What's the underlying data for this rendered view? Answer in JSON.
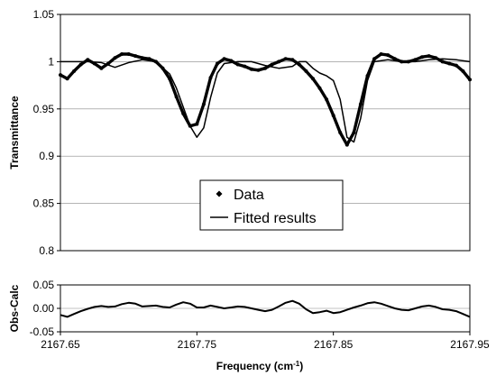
{
  "chart_data": [
    {
      "type": "line",
      "title": "",
      "xlabel": "",
      "ylabel": "Transmittance",
      "xlim": [
        2167.65,
        2167.95
      ],
      "ylim": [
        0.8,
        1.05
      ],
      "yticks": [
        "0.8",
        "0.85",
        "0.9",
        "0.95",
        "1",
        "1.05"
      ],
      "grid": true,
      "legend": {
        "placement": "lower-center",
        "entries": [
          {
            "label": "Data",
            "marker": "diamond"
          },
          {
            "label": "Fitted results",
            "marker": "line"
          }
        ]
      },
      "series": [
        {
          "name": "Data",
          "style": "dots",
          "x": [
            2167.65,
            2167.655,
            2167.66,
            2167.665,
            2167.67,
            2167.675,
            2167.68,
            2167.685,
            2167.69,
            2167.695,
            2167.7,
            2167.705,
            2167.71,
            2167.715,
            2167.72,
            2167.725,
            2167.73,
            2167.735,
            2167.74,
            2167.745,
            2167.75,
            2167.755,
            2167.76,
            2167.765,
            2167.77,
            2167.775,
            2167.78,
            2167.785,
            2167.79,
            2167.795,
            2167.8,
            2167.805,
            2167.81,
            2167.815,
            2167.82,
            2167.825,
            2167.83,
            2167.835,
            2167.84,
            2167.845,
            2167.85,
            2167.855,
            2167.86,
            2167.865,
            2167.87,
            2167.875,
            2167.88,
            2167.885,
            2167.89,
            2167.895,
            2167.9,
            2167.905,
            2167.91,
            2167.915,
            2167.92,
            2167.925,
            2167.93,
            2167.935,
            2167.94,
            2167.945,
            2167.95
          ],
          "y": [
            0.986,
            0.982,
            0.99,
            0.997,
            1.002,
            0.998,
            0.993,
            0.998,
            1.004,
            1.008,
            1.008,
            1.006,
            1.004,
            1.003,
            1.0,
            0.993,
            0.982,
            0.963,
            0.945,
            0.932,
            0.934,
            0.955,
            0.983,
            0.998,
            1.003,
            1.001,
            0.997,
            0.995,
            0.992,
            0.991,
            0.993,
            0.997,
            1.0,
            1.003,
            1.002,
            0.997,
            0.99,
            0.982,
            0.972,
            0.96,
            0.943,
            0.925,
            0.912,
            0.925,
            0.955,
            0.985,
            1.003,
            1.008,
            1.007,
            1.003,
            1.0,
            1.0,
            1.002,
            1.005,
            1.006,
            1.004,
            1.0,
            0.998,
            0.996,
            0.99,
            0.981
          ]
        },
        {
          "name": "Fitted results",
          "style": "line",
          "x": [
            2167.65,
            2167.66,
            2167.67,
            2167.68,
            2167.69,
            2167.7,
            2167.71,
            2167.72,
            2167.73,
            2167.735,
            2167.74,
            2167.745,
            2167.75,
            2167.755,
            2167.76,
            2167.765,
            2167.77,
            2167.78,
            2167.79,
            2167.8,
            2167.81,
            2167.82,
            2167.825,
            2167.83,
            2167.835,
            2167.84,
            2167.845,
            2167.85,
            2167.855,
            2167.86,
            2167.865,
            2167.87,
            2167.875,
            2167.88,
            2167.89,
            2167.9,
            2167.91,
            2167.92,
            2167.93,
            2167.94,
            2167.95
          ],
          "y": [
            1.0,
            1.0,
            1.0,
            0.999,
            0.994,
            0.999,
            1.002,
            1.0,
            0.987,
            0.972,
            0.952,
            0.932,
            0.92,
            0.93,
            0.962,
            0.988,
            0.998,
            1.0,
            1.0,
            0.996,
            0.993,
            0.995,
            1.0,
            1.0,
            0.993,
            0.988,
            0.985,
            0.98,
            0.96,
            0.92,
            0.915,
            0.94,
            0.98,
            1.0,
            1.002,
            1.0,
            1.0,
            1.002,
            1.003,
            1.002,
            1.0
          ]
        }
      ]
    },
    {
      "type": "line",
      "title": "",
      "xlabel": "Frequency (cm-1)",
      "xlabel_parts": {
        "main": "Frequency (cm",
        "sup": "-1",
        "close": ")"
      },
      "ylabel": "Obs-Calc",
      "xlim": [
        2167.65,
        2167.95
      ],
      "ylim": [
        -0.05,
        0.05
      ],
      "xticks": [
        "2167.65",
        "2167.75",
        "2167.85",
        "2167.95"
      ],
      "yticks": [
        "-0.05",
        "0.00",
        "0.05"
      ],
      "grid": true,
      "series": [
        {
          "name": "Obs-Calc",
          "style": "line",
          "x": [
            2167.65,
            2167.655,
            2167.66,
            2167.665,
            2167.67,
            2167.675,
            2167.68,
            2167.685,
            2167.69,
            2167.695,
            2167.7,
            2167.705,
            2167.71,
            2167.715,
            2167.72,
            2167.725,
            2167.73,
            2167.735,
            2167.74,
            2167.745,
            2167.75,
            2167.755,
            2167.76,
            2167.765,
            2167.77,
            2167.775,
            2167.78,
            2167.785,
            2167.79,
            2167.795,
            2167.8,
            2167.805,
            2167.81,
            2167.815,
            2167.82,
            2167.825,
            2167.83,
            2167.835,
            2167.84,
            2167.845,
            2167.85,
            2167.855,
            2167.86,
            2167.865,
            2167.87,
            2167.875,
            2167.88,
            2167.885,
            2167.89,
            2167.895,
            2167.9,
            2167.905,
            2167.91,
            2167.915,
            2167.92,
            2167.925,
            2167.93,
            2167.935,
            2167.94,
            2167.945,
            2167.95
          ],
          "y": [
            -0.014,
            -0.018,
            -0.012,
            -0.006,
            -0.001,
            0.003,
            0.005,
            0.003,
            0.004,
            0.009,
            0.012,
            0.01,
            0.004,
            0.005,
            0.006,
            0.003,
            0.002,
            0.008,
            0.013,
            0.01,
            0.002,
            0.002,
            0.006,
            0.003,
            0.0,
            0.002,
            0.004,
            0.003,
            0.0,
            -0.003,
            -0.006,
            -0.003,
            0.004,
            0.012,
            0.016,
            0.01,
            -0.002,
            -0.01,
            -0.008,
            -0.005,
            -0.01,
            -0.008,
            -0.003,
            0.002,
            0.006,
            0.011,
            0.013,
            0.01,
            0.005,
            0.0,
            -0.003,
            -0.004,
            0.0,
            0.004,
            0.006,
            0.003,
            -0.002,
            -0.003,
            -0.006,
            -0.012,
            -0.018
          ]
        }
      ]
    }
  ]
}
